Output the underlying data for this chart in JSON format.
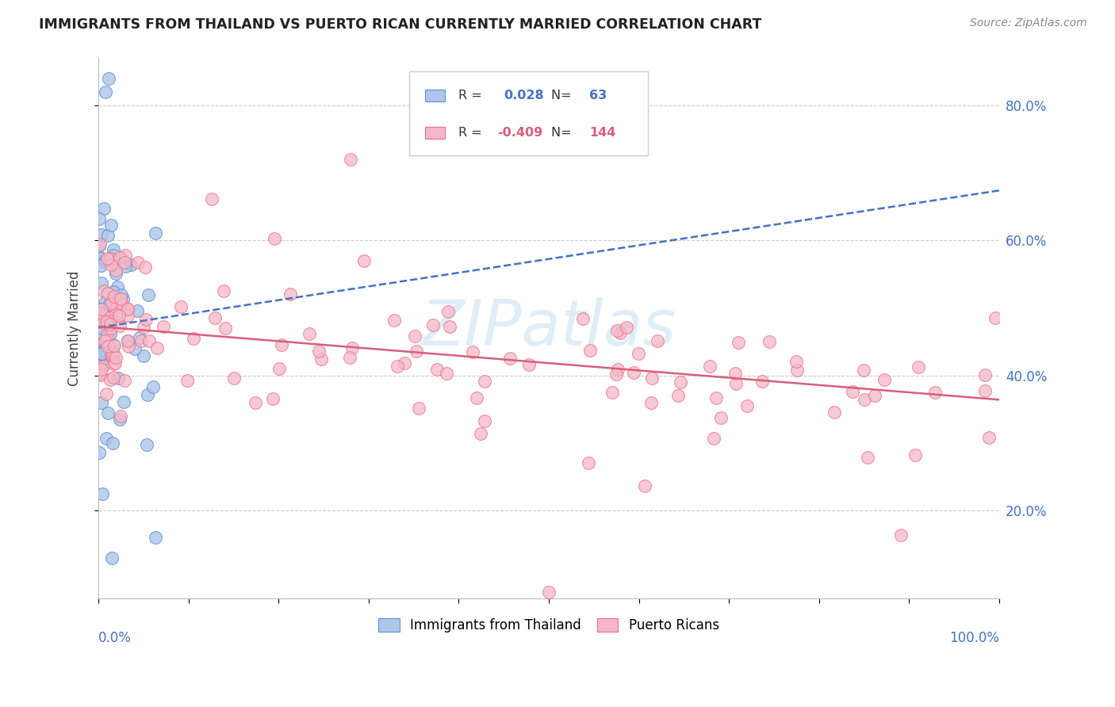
{
  "title": "IMMIGRANTS FROM THAILAND VS PUERTO RICAN CURRENTLY MARRIED CORRELATION CHART",
  "source": "Source: ZipAtlas.com",
  "ylabel": "Currently Married",
  "legend_label1": "Immigrants from Thailand",
  "legend_label2": "Puerto Ricans",
  "R1": 0.028,
  "N1": 63,
  "R2": -0.409,
  "N2": 144,
  "color1": "#aec6e8",
  "color2": "#f5b8c8",
  "edge_color1": "#5b8fd4",
  "edge_color2": "#e8708a",
  "line_color1": "#4472c4",
  "line_color2": "#d95f7a",
  "watermark": "ZIPatlas",
  "xlim": [
    0.0,
    1.0
  ],
  "ylim": [
    0.07,
    0.87
  ],
  "yticks": [
    0.2,
    0.4,
    0.6,
    0.8
  ],
  "ytick_labels": [
    "20.0%",
    "40.0%",
    "60.0%",
    "80.0%"
  ],
  "blue_seed": 42,
  "pink_seed": 123
}
